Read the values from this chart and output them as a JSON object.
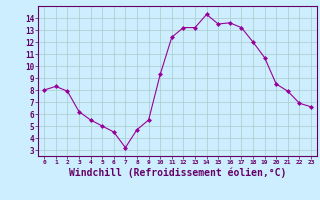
{
  "x": [
    0,
    1,
    2,
    3,
    4,
    5,
    6,
    7,
    8,
    9,
    10,
    11,
    12,
    13,
    14,
    15,
    16,
    17,
    18,
    19,
    20,
    21,
    22,
    23
  ],
  "y": [
    8,
    8.3,
    7.9,
    6.2,
    5.5,
    5.0,
    4.5,
    3.2,
    4.7,
    5.5,
    9.3,
    12.4,
    13.2,
    13.2,
    14.3,
    13.5,
    13.6,
    13.2,
    12.0,
    10.7,
    8.5,
    7.9,
    6.9,
    6.6
  ],
  "line_color": "#990099",
  "marker": "D",
  "marker_size": 2,
  "bg_color": "#cceeff",
  "grid_color": "#aacccc",
  "xlabel": "Windchill (Refroidissement éolien,°C)",
  "xlabel_fontsize": 7,
  "xtick_labels": [
    "0",
    "1",
    "2",
    "3",
    "4",
    "5",
    "6",
    "7",
    "8",
    "9",
    "10",
    "11",
    "12",
    "13",
    "14",
    "15",
    "16",
    "17",
    "18",
    "19",
    "20",
    "21",
    "22",
    "23"
  ],
  "ytick_min": 3,
  "ytick_max": 14,
  "axis_color": "#660066",
  "tick_color": "#660066"
}
